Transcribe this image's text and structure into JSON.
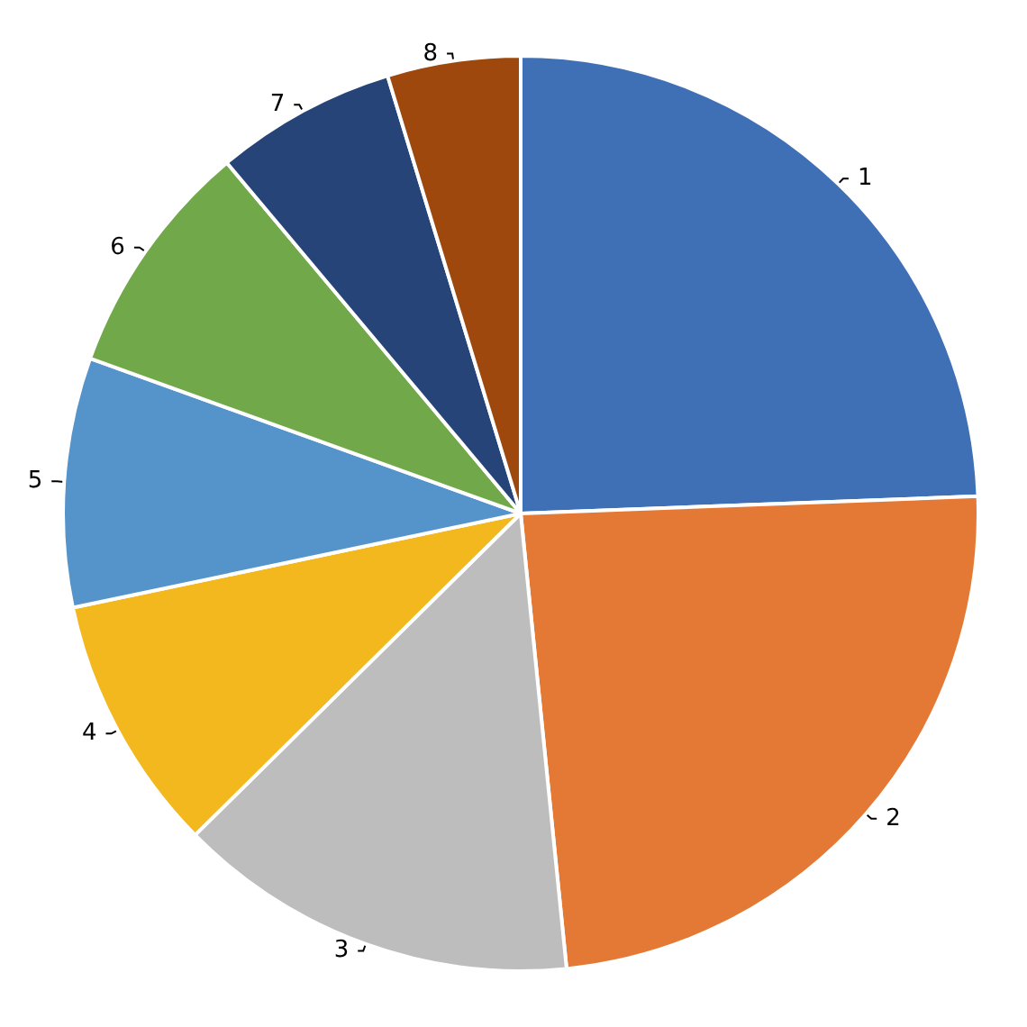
{
  "chart_data": {
    "type": "pie",
    "categories": [
      "1",
      "2",
      "3",
      "4",
      "5",
      "6",
      "7",
      "8"
    ],
    "values": [
      24.4,
      24.0,
      14.2,
      9.1,
      8.8,
      8.4,
      6.4,
      4.7
    ],
    "colors": [
      "#3f6fb5",
      "#e37934",
      "#bdbdbd",
      "#f3b81e",
      "#5593cb",
      "#70a84a",
      "#264478",
      "#9e480e"
    ]
  }
}
